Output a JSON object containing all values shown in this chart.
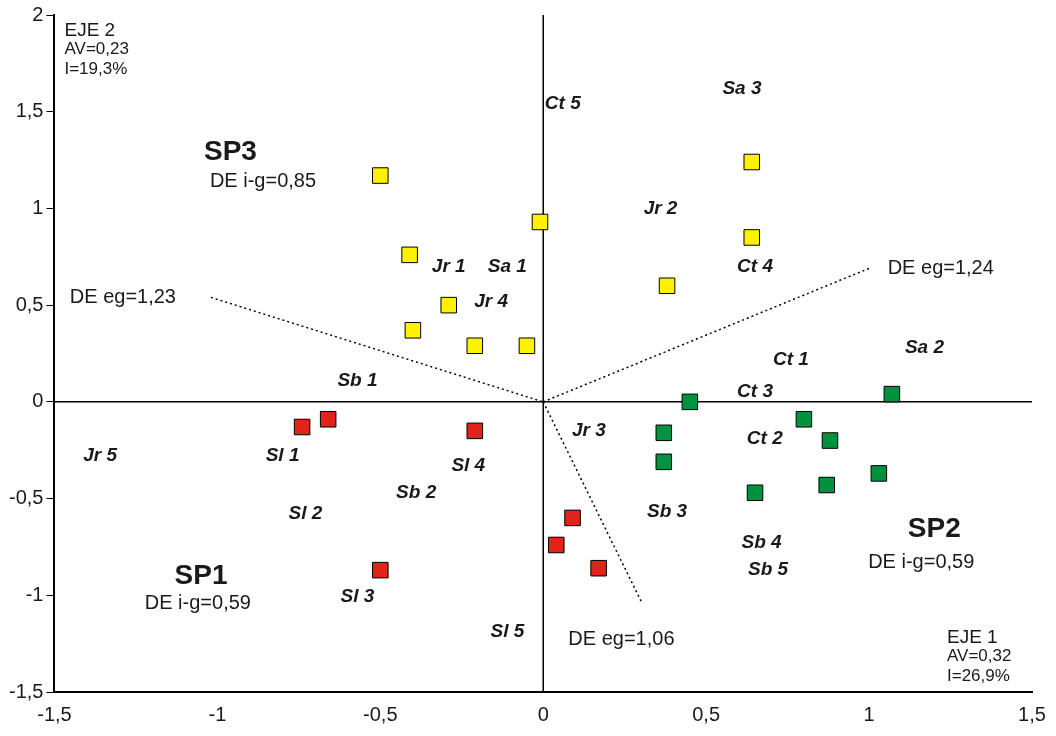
{
  "chart_data": {
    "type": "scatter",
    "marker": "square",
    "grid": false,
    "legend": false,
    "xlim": [
      -1.5,
      1.5
    ],
    "ylim": [
      -1.5,
      2
    ],
    "xticks": [
      {
        "value": -1.5,
        "label": "-1,5"
      },
      {
        "value": -1,
        "label": "-1"
      },
      {
        "value": -0.5,
        "label": "-0,5"
      },
      {
        "value": 0,
        "label": "0"
      },
      {
        "value": 0.5,
        "label": "0,5"
      },
      {
        "value": 1,
        "label": "1"
      },
      {
        "value": 1.5,
        "label": "1,5"
      }
    ],
    "yticks": [
      {
        "value": -1.5,
        "label": "-1,5"
      },
      {
        "value": -1,
        "label": "-1"
      },
      {
        "value": -0.5,
        "label": "-0,5"
      },
      {
        "value": 0,
        "label": "0"
      },
      {
        "value": 0.5,
        "label": "0,5"
      },
      {
        "value": 1,
        "label": "1"
      },
      {
        "value": 1.5,
        "label": "1,5"
      },
      {
        "value": 2,
        "label": "2"
      }
    ],
    "series": [
      {
        "color": "#fff200",
        "x": [
          -0.5,
          -0.41,
          -0.4,
          -0.29,
          -0.21,
          -0.05,
          -0.01,
          0.38,
          0.64,
          0.64
        ],
        "values": [
          1.17,
          0.76,
          0.37,
          0.5,
          0.29,
          0.29,
          0.93,
          0.6,
          0.85,
          1.24
        ]
      },
      {
        "color": "#00923f",
        "x": [
          0.45,
          0.37,
          0.37,
          0.65,
          0.8,
          0.88,
          0.87,
          1.03,
          1.07
        ],
        "values": [
          0,
          -0.16,
          -0.31,
          -0.47,
          -0.09,
          -0.2,
          -0.43,
          -0.37,
          0.04
        ]
      },
      {
        "color": "#e2231a",
        "x": [
          -0.74,
          -0.66,
          -0.21,
          0.09,
          0.04,
          0.17,
          -0.5
        ],
        "values": [
          -0.13,
          -0.09,
          -0.15,
          -0.6,
          -0.74,
          -0.86,
          -0.87
        ]
      },
      {
        "type": "line",
        "color": "#000000",
        "line_style": "solid",
        "marker": "none",
        "x": [
          0,
          0
        ],
        "values": [
          -1.5,
          2
        ]
      },
      {
        "type": "line",
        "color": "#000000",
        "line_style": "solid",
        "marker": "none",
        "x": [
          -1.5,
          1.5
        ],
        "values": [
          0,
          0
        ]
      },
      {
        "type": "line",
        "color": "#000000",
        "line_style": "dotted",
        "marker": "none",
        "x": [
          -1.02,
          0
        ],
        "values": [
          0.54,
          0
        ]
      },
      {
        "type": "line",
        "color": "#000000",
        "line_style": "dotted",
        "marker": "none",
        "x": [
          0,
          1
        ],
        "values": [
          0,
          0.69
        ]
      },
      {
        "type": "line",
        "color": "#000000",
        "line_style": "dotted",
        "marker": "none",
        "x": [
          0,
          0.3
        ],
        "values": [
          0,
          -1.03
        ]
      }
    ],
    "annotations": [
      "Ct 5",
      "Sa 3",
      "Jr 2",
      "Ct 4",
      "Jr 1",
      "Sa 1",
      "Jr 4",
      "Ct 1",
      "Sa 2",
      "Ct 3",
      "Ct 2",
      "Jr 3",
      "Sb 1",
      "Sl 1",
      "Sl 4",
      "Jr 5",
      "Sb 2",
      "Sl 2",
      "Sb 3",
      "Sb 4",
      "Sb 5",
      "Sl 3",
      "Sl 5",
      "SP3",
      "DE i-g=0,85",
      "SP2",
      "DE i-g=0,59",
      "SP1",
      "DE i-g=0,59",
      "DE eg=1,23",
      "DE eg=1,24",
      "DE eg=1,06",
      "EJE 2\nAV=0,23\nI=19,3%",
      "EJE 1\nAV=0,32\nI=26,9%"
    ]
  }
}
